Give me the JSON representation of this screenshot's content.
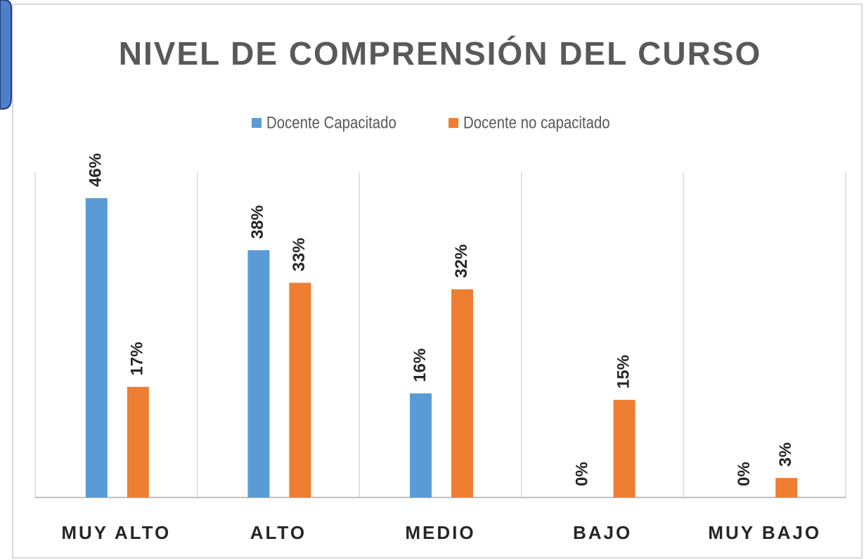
{
  "chart_data": {
    "type": "bar",
    "title": "NIVEL DE COMPRENSIÓN DEL CURSO",
    "categories": [
      "MUY ALTO",
      "ALTO",
      "MEDIO",
      "BAJO",
      "MUY BAJO"
    ],
    "series": [
      {
        "name": "Docente Capacitado",
        "color": "#5b9bd5",
        "values": [
          46,
          38,
          16,
          0,
          0
        ],
        "value_labels": [
          "46%",
          "38%",
          "16%",
          "0%",
          "0%"
        ]
      },
      {
        "name": "Docente no capacitado",
        "color": "#ed7d31",
        "values": [
          17,
          33,
          32,
          15,
          3
        ],
        "value_labels": [
          "17%",
          "33%",
          "32%",
          "15%",
          "3%"
        ]
      }
    ],
    "ylim": [
      0,
      50
    ],
    "legend": "top"
  }
}
